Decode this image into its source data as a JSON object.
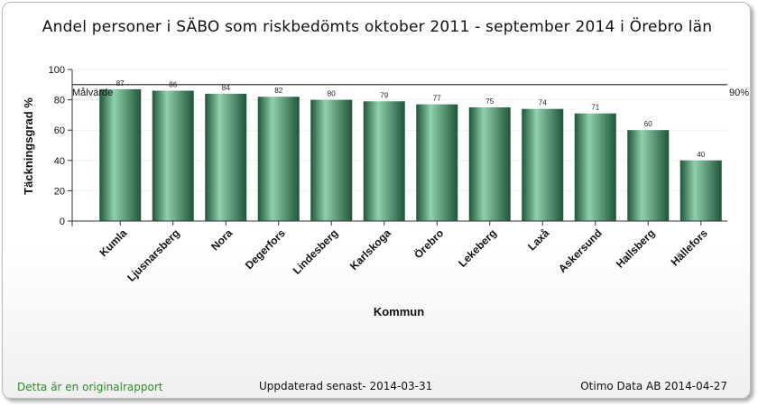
{
  "footer": {
    "original_note": "Detta är en originalrapport",
    "updated": "Uppdaterad senast- 2014-03-31",
    "company": "Otimo Data AB 2014-04-27"
  },
  "colors": {
    "bar_dark": "#1f5538",
    "bar_light": "#8fd0ad",
    "target_line": "#222222",
    "footer_note": "#2e8b2e"
  },
  "chart_data": {
    "type": "bar",
    "title": "Andel personer i SÄBO som riskbedömts  oktober 2011 - september 2014 i    Örebro län",
    "xlabel": "Kommun",
    "ylabel": "Täckningsgrad %",
    "ylim": [
      0,
      100
    ],
    "yticks": [
      0,
      20,
      40,
      60,
      80,
      100
    ],
    "categories": [
      "Kumla",
      "Ljusnarsberg",
      "Nora",
      "Degerfors",
      "Lindesberg",
      "Karlskoga",
      "Örebro",
      "Lekeberg",
      "Laxå",
      "Askersund",
      "Hallsberg",
      "Hällefors"
    ],
    "values": [
      87,
      86,
      84,
      82,
      80,
      79,
      77,
      75,
      74,
      71,
      60,
      40
    ],
    "target": {
      "label": "Målvärde",
      "value": 90,
      "value_label": "90%"
    },
    "grid": true,
    "legend": "none"
  }
}
